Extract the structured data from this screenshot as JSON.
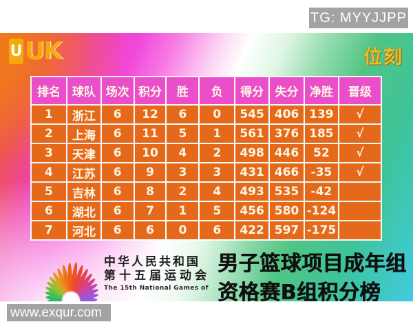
{
  "watermarks": {
    "telegram": "TG: MYYJJPP",
    "website": "www.exqur.com"
  },
  "header_logos": {
    "left_logo_first": "U",
    "left_logo_rest": "UK",
    "right_logo": "位刻"
  },
  "chart_data": {
    "type": "table",
    "title": "男子篮球项目成年组 资格赛B组积分榜",
    "columns": [
      "排名",
      "球队",
      "场次",
      "积分",
      "胜",
      "负",
      "得分",
      "失分",
      "净胜",
      "晋级"
    ],
    "rows": [
      [
        "1",
        "浙江",
        "6",
        "12",
        "6",
        "0",
        "545",
        "406",
        "139",
        "√"
      ],
      [
        "2",
        "上海",
        "6",
        "11",
        "5",
        "1",
        "561",
        "376",
        "185",
        "√"
      ],
      [
        "3",
        "天津",
        "6",
        "10",
        "4",
        "2",
        "498",
        "446",
        "52",
        "√"
      ],
      [
        "4",
        "江苏",
        "6",
        "9",
        "3",
        "3",
        "431",
        "466",
        "-35",
        "√"
      ],
      [
        "5",
        "吉林",
        "6",
        "8",
        "2",
        "4",
        "493",
        "535",
        "-42",
        ""
      ],
      [
        "6",
        "湖北",
        "6",
        "7",
        "1",
        "5",
        "456",
        "580",
        "-124",
        ""
      ],
      [
        "7",
        "河北",
        "6",
        "6",
        "0",
        "6",
        "422",
        "597",
        "-175",
        ""
      ]
    ]
  },
  "footer": {
    "emblem_name": "15th-national-games-emblem",
    "org_line1": "中华人民共和国",
    "org_line2": "第十五届运动会",
    "org_line3": "The 15th National Games of",
    "title_line1": "男子篮球项目成年组",
    "title_line2": "资格赛B组积分榜"
  },
  "colors": {
    "header_bg": "#ea4ec9",
    "cell_bg": "#e5691b",
    "cell_text": "#fff6e4",
    "logo_yellow": "#f5a90c",
    "weike_yellow": "#f0c019",
    "title_text": "#101010",
    "watermark_bg": "#a3a3a3",
    "watermark_text": "#ffffff"
  }
}
